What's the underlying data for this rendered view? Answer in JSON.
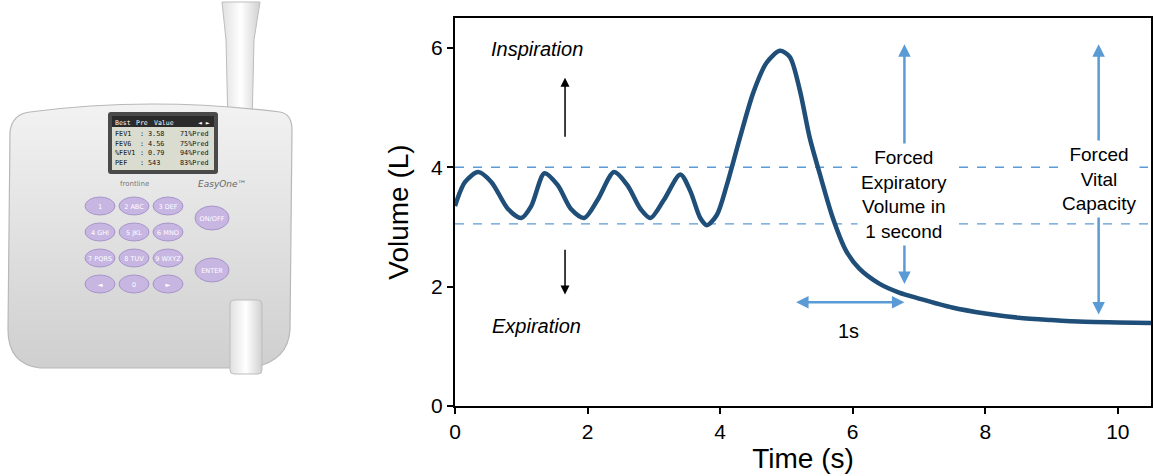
{
  "chart_data": {
    "type": "line",
    "x_label": "Time (s)",
    "y_label": "Volume (L)",
    "xlim": [
      0,
      10.5
    ],
    "ylim": [
      0,
      6.5
    ],
    "xticks": [
      0,
      2,
      4,
      6,
      8,
      10
    ],
    "yticks": [
      0,
      2,
      4,
      6
    ],
    "grid": false,
    "x": [
      0,
      0.15,
      0.35,
      0.55,
      0.8,
      1.0,
      1.15,
      1.35,
      1.55,
      1.75,
      1.95,
      2.15,
      2.4,
      2.6,
      2.8,
      2.95,
      3.15,
      3.4,
      3.55,
      3.7,
      3.8,
      3.95,
      4.1,
      4.3,
      4.5,
      4.7,
      4.9,
      5.05,
      5.2,
      5.35,
      5.5,
      5.7,
      5.9,
      6.1,
      6.4,
      6.7,
      7.0,
      7.5,
      8.0,
      8.5,
      9.0,
      9.5,
      10.0,
      10.5
    ],
    "series": [
      {
        "color": "#1f4e79",
        "line_style": "solid",
        "values": [
          3.35,
          3.75,
          3.92,
          3.75,
          3.3,
          3.15,
          3.35,
          3.9,
          3.7,
          3.3,
          3.15,
          3.45,
          3.92,
          3.7,
          3.3,
          3.15,
          3.45,
          3.88,
          3.6,
          3.15,
          3.03,
          3.2,
          3.7,
          4.5,
          5.25,
          5.75,
          5.95,
          5.85,
          5.3,
          4.5,
          3.9,
          3.15,
          2.6,
          2.3,
          2.05,
          1.9,
          1.8,
          1.65,
          1.55,
          1.48,
          1.44,
          1.41,
          1.4,
          1.39
        ]
      }
    ],
    "reference_lines": {
      "values": [
        4.0,
        3.05
      ],
      "color": "#5b9bd5",
      "line_style": "dashed"
    },
    "measurements": [
      {
        "label": "Forced Expiratory Volume in 1 second",
        "x": 6.78,
        "from": 1.9,
        "to": 6.06,
        "label_y": 3.55,
        "color": "#5b9bd5"
      },
      {
        "label": "Forced Vital Capacity",
        "x": 9.71,
        "from": 1.39,
        "to": 6.06,
        "label_y": 3.8,
        "color": "#5b9bd5"
      }
    ],
    "interval": {
      "label": "1s",
      "from": 5.1,
      "to": 6.78,
      "y": 1.74,
      "label_y": 1.25,
      "color": "#5b9bd5"
    },
    "annotations": [
      {
        "text": "Inspiration",
        "x": 1.23,
        "y": 5.98,
        "arrow": {
          "x": 1.66,
          "from": 4.37,
          "to": 5.5
        }
      },
      {
        "text": "Expiration",
        "x": 1.23,
        "y": 1.34,
        "arrow": {
          "x": 1.66,
          "from": 2.76,
          "to": 1.87
        }
      }
    ]
  },
  "device": {
    "brand": "frontline",
    "model": "EasyOne™",
    "screen": {
      "header": [
        "Best",
        "Pre",
        "Value",
        "◄ ►"
      ],
      "rows": [
        [
          "FEV1",
          ":",
          "3.58",
          "71%Pred"
        ],
        [
          "FEV6",
          ":",
          "4.56",
          "75%Pred"
        ],
        [
          "%FEV1",
          ":",
          "0.79",
          "94%Pred"
        ],
        [
          "PEF",
          ":",
          "543",
          "83%Pred"
        ]
      ]
    },
    "keys": [
      [
        "1",
        "2 ABC",
        "3 DEF"
      ],
      [
        "4 GHI",
        "5 JKL",
        "6 MNO"
      ],
      [
        "7 PQRS",
        "8 TUV",
        "9 WXYZ"
      ],
      [
        "◄",
        "0",
        "►"
      ]
    ],
    "side_keys": [
      "ON/OFF",
      "ENTER"
    ]
  }
}
